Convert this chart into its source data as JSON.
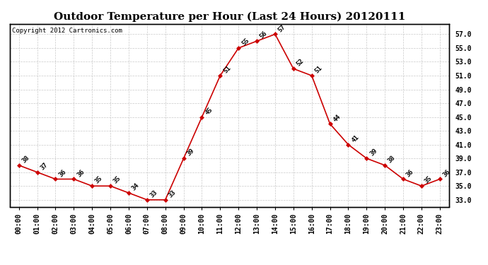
{
  "hours": [
    "00:00",
    "01:00",
    "02:00",
    "03:00",
    "04:00",
    "05:00",
    "06:00",
    "07:00",
    "08:00",
    "09:00",
    "10:00",
    "11:00",
    "12:00",
    "13:00",
    "14:00",
    "15:00",
    "16:00",
    "17:00",
    "18:00",
    "19:00",
    "20:00",
    "21:00",
    "22:00",
    "23:00"
  ],
  "temps": [
    38,
    37,
    36,
    36,
    35,
    35,
    34,
    33,
    33,
    39,
    45,
    51,
    55,
    56,
    57,
    52,
    51,
    44,
    41,
    39,
    38,
    36,
    35,
    36
  ],
  "title": "Outdoor Temperature per Hour (Last 24 Hours) 20120111",
  "copyright": "Copyright 2012 Cartronics.com",
  "line_color": "#cc0000",
  "marker_color": "#cc0000",
  "bg_color": "#ffffff",
  "grid_color": "#bbbbbb",
  "ylim_min": 32.0,
  "ylim_max": 58.5,
  "yticks": [
    33.0,
    35.0,
    37.0,
    39.0,
    41.0,
    43.0,
    45.0,
    47.0,
    49.0,
    51.0,
    53.0,
    55.0,
    57.0
  ],
  "title_fontsize": 11,
  "label_fontsize": 6.5,
  "tick_fontsize": 7,
  "copyright_fontsize": 6.5
}
